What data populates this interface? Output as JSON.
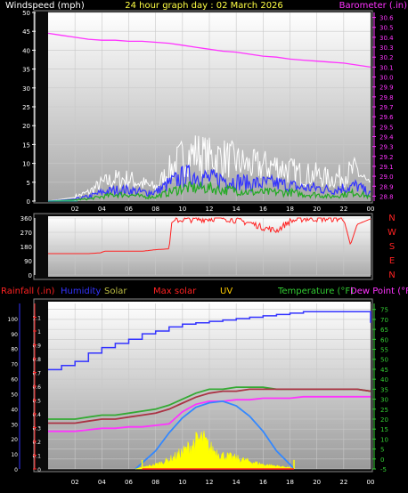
{
  "chart_data": [
    {
      "type": "line",
      "title": "24 hour graph day : 02 March 2026",
      "left_axis_label": "Windspeed (mph)",
      "right_axis_label": "Barometer (.in)",
      "x_ticks": [
        "02",
        "04",
        "06",
        "08",
        "10",
        "12",
        "14",
        "16",
        "18",
        "20",
        "22",
        "00"
      ],
      "left_ticks": [
        0,
        5,
        10,
        15,
        20,
        25,
        30,
        35,
        40,
        45,
        50
      ],
      "right_ticks": [
        28.8,
        28.9,
        29.0,
        29.1,
        29.2,
        29.3,
        29.4,
        29.5,
        29.6,
        29.7,
        29.8,
        29.9,
        30.0,
        30.1,
        30.2,
        30.3,
        30.4,
        30.5,
        30.6
      ],
      "ylim_left": [
        0,
        50
      ],
      "ylim_right": [
        28.75,
        30.65
      ],
      "series": [
        {
          "name": "Barometer (.in)",
          "axis": "right",
          "color": "#ff33ff",
          "x": [
            0,
            1,
            2,
            3,
            4,
            5,
            6,
            7,
            8,
            9,
            10,
            11,
            12,
            13,
            14,
            15,
            16,
            17,
            18,
            19,
            20,
            21,
            22,
            23,
            24
          ],
          "values": [
            30.44,
            30.42,
            30.4,
            30.38,
            30.37,
            30.37,
            30.36,
            30.36,
            30.35,
            30.34,
            30.32,
            30.3,
            30.28,
            30.26,
            30.25,
            30.23,
            30.21,
            30.2,
            30.18,
            30.17,
            30.16,
            30.15,
            30.14,
            30.12,
            30.1
          ]
        },
        {
          "axis": "left",
          "color": "#ffffff",
          "x": [
            0,
            2,
            3,
            4,
            5,
            6,
            7,
            8,
            9,
            10,
            11,
            12,
            13,
            14,
            15,
            16,
            17,
            18,
            19,
            20,
            21,
            22,
            23,
            24
          ],
          "values": [
            0,
            1,
            2,
            4,
            5,
            5,
            4,
            3,
            7,
            10,
            11,
            10,
            10,
            9,
            8,
            8,
            8,
            7,
            6,
            6,
            5,
            6,
            7,
            3
          ]
        },
        {
          "axis": "left",
          "color": "#3333ff",
          "x": [
            0,
            2,
            3,
            4,
            5,
            6,
            7,
            8,
            9,
            10,
            11,
            12,
            13,
            14,
            15,
            16,
            17,
            18,
            19,
            20,
            21,
            22,
            23,
            24
          ],
          "values": [
            0,
            0.5,
            1,
            2,
            2.5,
            2.5,
            2,
            2,
            4,
            5.5,
            6,
            5,
            5,
            4.5,
            4,
            4,
            4,
            3.5,
            3,
            3,
            2.5,
            3,
            3.5,
            1.5
          ]
        },
        {
          "axis": "left",
          "color": "#22aa22",
          "x": [
            0,
            2,
            3,
            4,
            5,
            6,
            7,
            8,
            9,
            10,
            11,
            12,
            13,
            14,
            15,
            16,
            17,
            18,
            19,
            20,
            21,
            22,
            23,
            24
          ],
          "values": [
            0,
            0.3,
            0.5,
            1,
            1.5,
            1.5,
            1,
            1,
            2,
            3,
            3,
            3,
            2.5,
            2.5,
            2,
            2,
            2,
            2,
            1.5,
            1.5,
            1,
            1.5,
            2,
            0.8
          ]
        }
      ]
    },
    {
      "type": "line",
      "right_axis_label": [
        "N",
        "W",
        "S",
        "E",
        "N"
      ],
      "left_ticks": [
        0,
        90,
        180,
        270,
        360
      ],
      "ylim": [
        0,
        360
      ],
      "series": [
        {
          "name": "Wind direction",
          "color": "#ff2222",
          "x": [
            0,
            1,
            2,
            3,
            3.9,
            4.2,
            5,
            6,
            7,
            8,
            9,
            9.2,
            9.5,
            9.8,
            10,
            11,
            12,
            13,
            14,
            15,
            16,
            17,
            18,
            19,
            20,
            21,
            22,
            22.5,
            23,
            24
          ],
          "values": [
            135,
            135,
            135,
            135,
            140,
            150,
            150,
            150,
            150,
            160,
            165,
            330,
            350,
            345,
            350,
            350,
            355,
            360,
            345,
            330,
            300,
            280,
            340,
            355,
            355,
            355,
            355,
            190,
            320,
            355
          ]
        }
      ]
    },
    {
      "type": "line",
      "legend": [
        "Rainfall (.in)",
        "Humidity",
        "Solar",
        "Max solar",
        "UV",
        "Temperature (°F)",
        "Dew Point (°F"
      ],
      "x_ticks": [
        "02",
        "04",
        "06",
        "08",
        "10",
        "12",
        "14",
        "16",
        "18",
        "20",
        "22",
        "00"
      ],
      "rain_ticks": [
        0,
        0.1,
        0.2,
        0.3,
        0.4,
        0.5,
        0.6,
        0.7,
        0.8,
        0.9,
        1,
        1.1
      ],
      "humidity_ticks": [
        0,
        10,
        20,
        30,
        40,
        50,
        60,
        70,
        80,
        90,
        100
      ],
      "temp_ticks": [
        -5,
        0,
        5,
        10,
        15,
        20,
        25,
        30,
        35,
        40,
        45,
        50,
        55,
        60,
        65,
        70,
        75
      ],
      "ylim_rain": [
        0,
        1.2
      ],
      "ylim_humidity": [
        0,
        110
      ],
      "ylim_temp": [
        -5,
        78
      ],
      "series": [
        {
          "name": "Rainfall (.in)",
          "axis": "rain",
          "color": "#3333ff",
          "x": [
            0,
            1,
            2,
            3,
            4,
            5,
            6,
            7,
            8,
            9,
            10,
            11,
            12,
            13,
            14,
            15,
            16,
            17,
            18,
            19,
            20,
            21,
            22,
            23,
            24,
            24
          ],
          "values": [
            0.72,
            0.75,
            0.78,
            0.84,
            0.88,
            0.91,
            0.94,
            0.98,
            1.0,
            1.03,
            1.05,
            1.06,
            1.07,
            1.08,
            1.09,
            1.1,
            1.11,
            1.12,
            1.13,
            1.14,
            1.14,
            1.14,
            1.14,
            1.14,
            1.14,
            1.06
          ]
        },
        {
          "name": "Temperature (°F)",
          "axis": "temp",
          "color": "#33aa33",
          "x": [
            0,
            1,
            2,
            3,
            4,
            5,
            6,
            7,
            8,
            9,
            10,
            11,
            12,
            13,
            14,
            15,
            16,
            17,
            18,
            19,
            20,
            21,
            22,
            23,
            24
          ],
          "values": [
            20,
            20,
            20,
            21,
            22,
            22,
            23,
            24,
            25,
            27,
            30,
            33,
            35,
            35,
            36,
            36,
            36,
            35,
            35,
            35,
            35,
            35,
            35,
            35,
            34
          ]
        },
        {
          "name": "Dew Point (°F",
          "axis": "temp",
          "color": "#aa3344",
          "x": [
            0,
            1,
            2,
            3,
            4,
            5,
            6,
            7,
            8,
            9,
            10,
            11,
            12,
            13,
            14,
            15,
            16,
            17,
            18,
            19,
            20,
            21,
            22,
            23,
            24
          ],
          "values": [
            18,
            18,
            18,
            19,
            20,
            20,
            21,
            22,
            23,
            25,
            28,
            31,
            33,
            34,
            34,
            35,
            35,
            35,
            35,
            35,
            35,
            35,
            35,
            35,
            34
          ]
        },
        {
          "name": "Humidity",
          "axis": "humidity",
          "color": "#ff33ff",
          "x": [
            0,
            1,
            2,
            3,
            4,
            5,
            6,
            7,
            8,
            9,
            10,
            11,
            12,
            13,
            14,
            15,
            16,
            17,
            18,
            19,
            20,
            21,
            22,
            23,
            24
          ],
          "values": [
            25,
            25,
            25,
            26,
            27,
            27,
            28,
            28,
            29,
            30,
            38,
            43,
            45,
            45,
            46,
            46,
            47,
            47,
            47,
            48,
            48,
            48,
            48,
            48,
            48
          ]
        },
        {
          "name": "Max solar",
          "axis": "humidity",
          "color": "#3388ff",
          "x": [
            6.5,
            7,
            8,
            9,
            10,
            11,
            12,
            13,
            14,
            15,
            16,
            17,
            18,
            18.3
          ],
          "values": [
            0,
            4,
            12,
            24,
            34,
            41,
            44,
            45,
            42,
            35,
            25,
            12,
            3,
            0
          ]
        },
        {
          "name": "Solar",
          "axis": "humidity",
          "color": "#ffff00",
          "x": [
            6.5,
            7,
            8,
            9,
            10,
            11,
            11.5,
            12,
            13,
            14,
            15,
            16,
            17,
            18,
            18.3
          ],
          "values": [
            0,
            1,
            3,
            6,
            11,
            18,
            20,
            14,
            9,
            7,
            5,
            3,
            2,
            1,
            0
          ]
        },
        {
          "name": "UV",
          "axis": "humidity",
          "color": "#ffff00",
          "x": [
            7,
            18.3
          ],
          "values": [
            0,
            0
          ]
        }
      ]
    }
  ],
  "colors": {
    "title": "#ffff44",
    "barometer": "#ff33ff",
    "wind_dir": "#ff2222",
    "rain": "#3333ff",
    "humidity": "#3333ff",
    "solar": "#bbbb44",
    "max_solar": "#ff2222",
    "uv": "#ffcc00",
    "temperature": "#33cc33",
    "dewpoint": "#ff33ff",
    "rainfall_label": "#ff2222"
  }
}
